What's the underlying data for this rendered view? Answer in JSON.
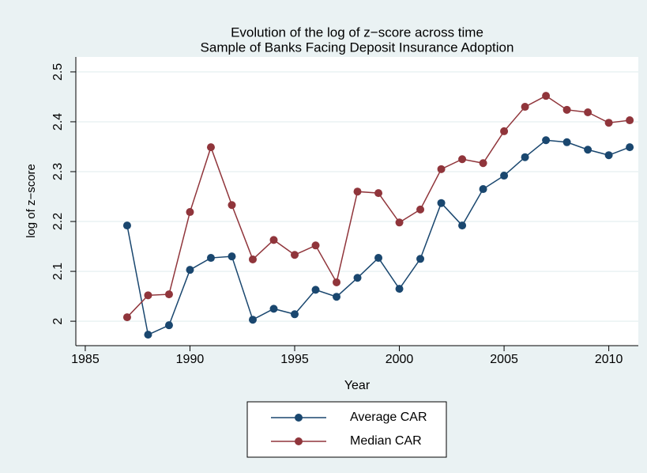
{
  "chart_data": {
    "type": "line",
    "title": "Evolution of the log of z−score across time",
    "subtitle": "Sample of Banks Facing Deposit Insurance Adoption",
    "x_label": "Year",
    "y_label": "log of z−score",
    "x": [
      1987,
      1988,
      1989,
      1990,
      1991,
      1992,
      1993,
      1994,
      1995,
      1996,
      1997,
      1998,
      1999,
      2000,
      2001,
      2002,
      2003,
      2004,
      2005,
      2006,
      2007,
      2008,
      2009,
      2010,
      2011
    ],
    "series": [
      {
        "name": "Average CAR",
        "color": "#1a476f",
        "values": [
          2.192,
          1.973,
          1.992,
          2.103,
          2.127,
          2.13,
          2.003,
          2.025,
          2.014,
          2.063,
          2.049,
          2.087,
          2.127,
          2.065,
          2.125,
          2.237,
          2.192,
          2.265,
          2.292,
          2.329,
          2.363,
          2.359,
          2.344,
          2.333,
          2.349
        ]
      },
      {
        "name": "Median CAR",
        "color": "#90353b",
        "values": [
          2.008,
          2.052,
          2.054,
          2.219,
          2.349,
          2.233,
          2.124,
          2.163,
          2.133,
          2.152,
          2.078,
          2.26,
          2.257,
          2.198,
          2.224,
          2.305,
          2.325,
          2.317,
          2.381,
          2.43,
          2.452,
          2.424,
          2.419,
          2.398,
          2.403
        ]
      }
    ],
    "xlim": [
      1984.55,
      2011.41
    ],
    "xticks": [
      1985,
      1990,
      1995,
      2000,
      2005,
      2010
    ],
    "ylim": [
      1.951,
      2.53
    ],
    "yticks": [
      2,
      2.1,
      2.2,
      2.3,
      2.4,
      2.5
    ],
    "grid": true,
    "legend": "bottom"
  }
}
